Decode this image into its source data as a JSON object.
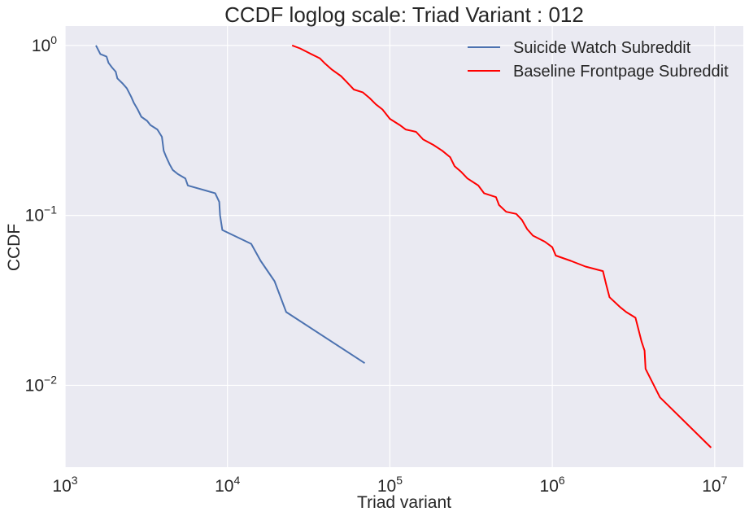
{
  "chart_data": {
    "type": "line",
    "title": "CCDF loglog scale: Triad Variant  : 012",
    "xlabel": "Triad variant",
    "ylabel": "CCDF",
    "xscale": "log",
    "yscale": "log",
    "xlim": [
      1000,
      15000000
    ],
    "ylim": [
      0.0033,
      1.3
    ],
    "xticks": [
      {
        "value": 1000,
        "base": "10",
        "exp": "3"
      },
      {
        "value": 10000,
        "base": "10",
        "exp": "4"
      },
      {
        "value": 100000,
        "base": "10",
        "exp": "5"
      },
      {
        "value": 1000000,
        "base": "10",
        "exp": "6"
      },
      {
        "value": 10000000,
        "base": "10",
        "exp": "7"
      }
    ],
    "yticks": [
      {
        "value": 1,
        "base": "10",
        "exp": "0"
      },
      {
        "value": 0.1,
        "base": "10",
        "exp": "−1"
      },
      {
        "value": 0.01,
        "base": "10",
        "exp": "−2"
      }
    ],
    "grid": true,
    "legend_position": "top-right",
    "series": [
      {
        "name": "Suicide Watch Subreddit",
        "color": "#4c72b0",
        "points": [
          [
            1550,
            1.0
          ],
          [
            1650,
            0.89
          ],
          [
            1800,
            0.86
          ],
          [
            1850,
            0.79
          ],
          [
            1950,
            0.74
          ],
          [
            2050,
            0.7
          ],
          [
            2100,
            0.64
          ],
          [
            2250,
            0.6
          ],
          [
            2400,
            0.56
          ],
          [
            2550,
            0.5
          ],
          [
            2650,
            0.46
          ],
          [
            2800,
            0.42
          ],
          [
            2950,
            0.38
          ],
          [
            3200,
            0.36
          ],
          [
            3350,
            0.34
          ],
          [
            3700,
            0.32
          ],
          [
            3950,
            0.29
          ],
          [
            4050,
            0.24
          ],
          [
            4200,
            0.22
          ],
          [
            4400,
            0.2
          ],
          [
            4600,
            0.185
          ],
          [
            4950,
            0.175
          ],
          [
            5500,
            0.165
          ],
          [
            5700,
            0.15
          ],
          [
            8400,
            0.135
          ],
          [
            8900,
            0.12
          ],
          [
            9000,
            0.1
          ],
          [
            9300,
            0.082
          ],
          [
            14000,
            0.068
          ],
          [
            16000,
            0.054
          ],
          [
            19500,
            0.041
          ],
          [
            23000,
            0.027
          ],
          [
            70000,
            0.0135
          ]
        ]
      },
      {
        "name": "Baseline Frontpage Subreddit",
        "color": "#ff0000",
        "points": [
          [
            25000,
            1.0
          ],
          [
            28000,
            0.96
          ],
          [
            32000,
            0.9
          ],
          [
            37000,
            0.84
          ],
          [
            40000,
            0.78
          ],
          [
            44000,
            0.72
          ],
          [
            50000,
            0.66
          ],
          [
            55000,
            0.6
          ],
          [
            60000,
            0.55
          ],
          [
            68000,
            0.53
          ],
          [
            75000,
            0.49
          ],
          [
            82000,
            0.45
          ],
          [
            90000,
            0.42
          ],
          [
            100000,
            0.37
          ],
          [
            115000,
            0.34
          ],
          [
            125000,
            0.32
          ],
          [
            145000,
            0.31
          ],
          [
            160000,
            0.28
          ],
          [
            185000,
            0.26
          ],
          [
            210000,
            0.24
          ],
          [
            235000,
            0.22
          ],
          [
            250000,
            0.195
          ],
          [
            275000,
            0.18
          ],
          [
            300000,
            0.165
          ],
          [
            350000,
            0.15
          ],
          [
            380000,
            0.135
          ],
          [
            450000,
            0.128
          ],
          [
            470000,
            0.115
          ],
          [
            520000,
            0.105
          ],
          [
            600000,
            0.102
          ],
          [
            650000,
            0.094
          ],
          [
            700000,
            0.083
          ],
          [
            760000,
            0.076
          ],
          [
            900000,
            0.07
          ],
          [
            1000000,
            0.065
          ],
          [
            1050000,
            0.058
          ],
          [
            1300000,
            0.054
          ],
          [
            1600000,
            0.05
          ],
          [
            2050000,
            0.047
          ],
          [
            2150000,
            0.039
          ],
          [
            2250000,
            0.033
          ],
          [
            2600000,
            0.029
          ],
          [
            2850000,
            0.027
          ],
          [
            3250000,
            0.025
          ],
          [
            3550000,
            0.018
          ],
          [
            3700000,
            0.016
          ],
          [
            3750000,
            0.0125
          ],
          [
            4600000,
            0.0085
          ],
          [
            9500000,
            0.0043
          ]
        ]
      }
    ]
  }
}
